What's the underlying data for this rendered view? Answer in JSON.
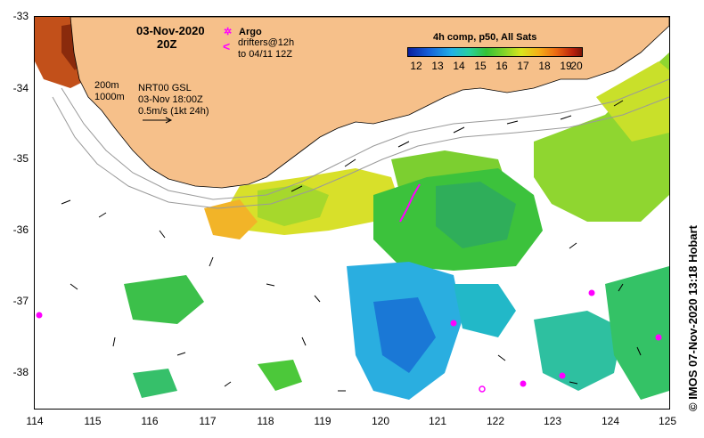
{
  "map": {
    "title_date": "03-Nov-2020",
    "title_time": "20Z",
    "legend": {
      "argo_label": "Argo",
      "drifters_line1": "drifters@12h",
      "drifters_line2": "to 04/11 12Z",
      "depth_200": "200m",
      "depth_1000": "1000m",
      "nrt_label": "NRT00 GSL",
      "nrt_time": "03-Nov 18:00Z",
      "scale_label": "0.5m/s (1kt 24h)"
    },
    "colorbar": {
      "title": "4h comp, p50, All Sats",
      "ticks": [
        "12",
        "13",
        "14",
        "15",
        "16",
        "17",
        "18",
        "19",
        "20"
      ]
    },
    "credit": "© IMOS 07-Nov-2020 13:18 Hobart",
    "lon_ticks": [
      "114",
      "115",
      "116",
      "117",
      "118",
      "119",
      "120",
      "121",
      "122",
      "123",
      "124",
      "125"
    ],
    "lat_ticks": [
      "-33",
      "-34",
      "-35",
      "-36",
      "-37",
      "-38"
    ],
    "colors": {
      "land": "#f6c08a",
      "argo": "#ff00ff"
    }
  }
}
